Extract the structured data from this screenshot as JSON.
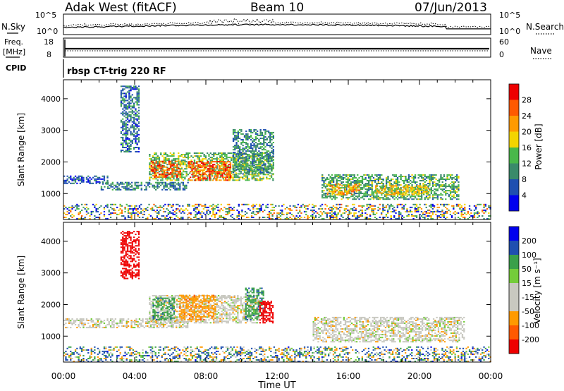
{
  "header": {
    "station": "Adak West (fitACF)",
    "beam": "Beam 10",
    "date": "07/Jun/2013"
  },
  "noise_panel": {
    "left_label": "N.Sky",
    "left_ticks": [
      "10^5",
      "10^0"
    ],
    "right_label": "N.Search",
    "right_ticks": [
      "10^5",
      "10^0"
    ]
  },
  "freq_panel": {
    "left_label_line1": "Freq.",
    "left_label_line2": "[MHz]",
    "left_ticks": [
      "18",
      "8"
    ],
    "right_label": "Nave",
    "right_ticks": [
      "60",
      "0"
    ],
    "cpid_label": "CPID",
    "cpid_text": "rbsp CT-trig 220 RF"
  },
  "colors": {
    "power_scale": [
      "#0000ee",
      "#1f4fb0",
      "#3a8a6a",
      "#49b84a",
      "#f3d400",
      "#ff9a00",
      "#ff5a00",
      "#ee0000"
    ],
    "velocity_scale": [
      "#ee0000",
      "#ff5a00",
      "#ff9a00",
      "#c8c8c0",
      "#c8c8c0",
      "#74cc3a",
      "#3aa04a",
      "#1f4fb0",
      "#0000ee"
    ],
    "gray": "#c8c8c0"
  },
  "chart_data": [
    {
      "type": "heatmap",
      "title": "",
      "ylabel": "Slant Range [km]",
      "xlabel": "",
      "x_range_hours": [
        0,
        24
      ],
      "y_range_km": [
        180,
        4600
      ],
      "y_ticks": [
        "1000",
        "2000",
        "3000",
        "4000"
      ],
      "x_ticks": [
        "00:00",
        "04:00",
        "08:00",
        "12:00",
        "16:00",
        "20:00",
        "00:00"
      ],
      "colorbar": {
        "label": "Power [dB]",
        "ticks": [
          "4",
          "8",
          "12",
          "16",
          "20",
          "24",
          "28"
        ],
        "range": [
          0,
          30
        ]
      },
      "regions": [
        {
          "t0": 0.0,
          "t1": 24.0,
          "r0": 180,
          "r1": 650,
          "value": 10,
          "note": "near-range scatter"
        },
        {
          "t0": 0.0,
          "t1": 2.5,
          "r0": 1300,
          "r1": 1550,
          "value": 6
        },
        {
          "t0": 3.2,
          "t1": 4.2,
          "r0": 2300,
          "r1": 4400,
          "value": 8
        },
        {
          "t0": 2.0,
          "t1": 7.0,
          "r0": 1100,
          "r1": 1350,
          "value": 9
        },
        {
          "t0": 4.8,
          "t1": 11.8,
          "r0": 1400,
          "r1": 2300,
          "value": 14
        },
        {
          "t0": 4.9,
          "t1": 6.6,
          "r0": 1500,
          "r1": 2000,
          "value": 26
        },
        {
          "t0": 7.0,
          "t1": 9.4,
          "r0": 1400,
          "r1": 2000,
          "value": 26
        },
        {
          "t0": 9.5,
          "t1": 11.8,
          "r0": 1600,
          "r1": 3000,
          "value": 10
        },
        {
          "t0": 14.5,
          "t1": 22.2,
          "r0": 800,
          "r1": 1600,
          "value": 12
        },
        {
          "t0": 14.8,
          "t1": 16.6,
          "r0": 950,
          "r1": 1300,
          "value": 22
        },
        {
          "t0": 17.5,
          "t1": 20.5,
          "r0": 950,
          "r1": 1250,
          "value": 19
        }
      ]
    },
    {
      "type": "heatmap",
      "title": "",
      "ylabel": "Slant Range [km]",
      "xlabel": "Time UT",
      "x_range_hours": [
        0,
        24
      ],
      "y_range_km": [
        180,
        4600
      ],
      "y_ticks": [
        "1000",
        "2000",
        "3000",
        "4000"
      ],
      "x_ticks": [
        "00:00",
        "04:00",
        "08:00",
        "12:00",
        "16:00",
        "20:00",
        "00:00"
      ],
      "colorbar": {
        "label": "Velocity [m s⁻¹]",
        "ticks": [
          "200",
          "100",
          "50",
          "15",
          "-15",
          "-50",
          "-100",
          "-200"
        ],
        "range": [
          -250,
          250
        ]
      },
      "regions": [
        {
          "t0": 0.0,
          "t1": 24.0,
          "r0": 180,
          "r1": 650,
          "value": 20,
          "note": "near-range scatter"
        },
        {
          "t0": 0.0,
          "t1": 7.0,
          "r0": 1250,
          "r1": 1550,
          "value": 0
        },
        {
          "t0": 3.2,
          "t1": 4.2,
          "r0": 2800,
          "r1": 4300,
          "value": -220
        },
        {
          "t0": 4.8,
          "t1": 11.0,
          "r0": 1400,
          "r1": 2300,
          "value": 0
        },
        {
          "t0": 5.0,
          "t1": 6.2,
          "r0": 1500,
          "r1": 2200,
          "value": 60
        },
        {
          "t0": 6.5,
          "t1": 8.5,
          "r0": 1500,
          "r1": 2300,
          "value": -60
        },
        {
          "t0": 10.2,
          "t1": 11.2,
          "r0": 1500,
          "r1": 2500,
          "value": 60
        },
        {
          "t0": 11.0,
          "t1": 11.8,
          "r0": 1400,
          "r1": 2100,
          "value": -220
        },
        {
          "t0": 14.0,
          "t1": 22.5,
          "r0": 800,
          "r1": 1600,
          "value": 0
        }
      ]
    }
  ]
}
